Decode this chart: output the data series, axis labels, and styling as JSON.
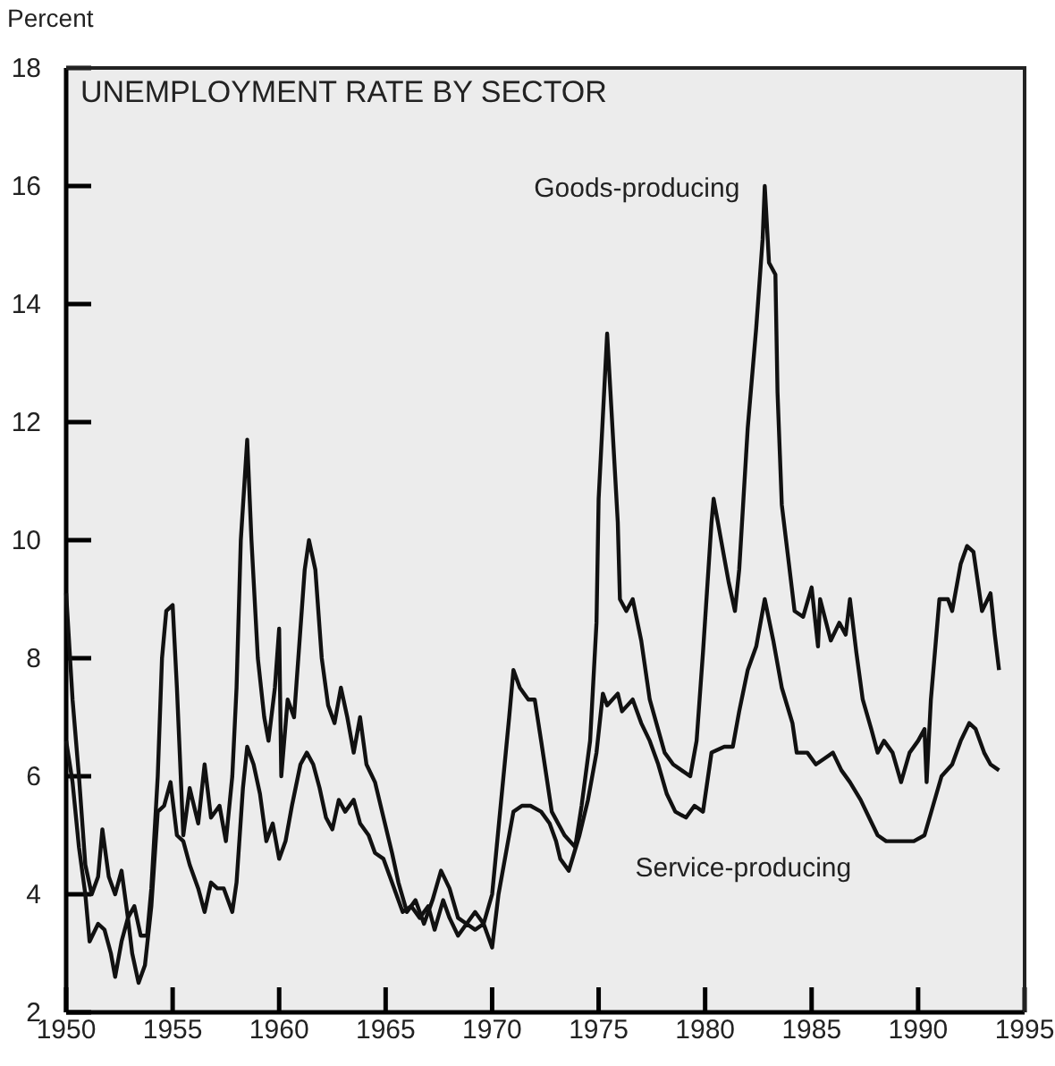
{
  "chart_data": {
    "type": "line",
    "title": "UNEMPLOYMENT RATE BY SECTOR",
    "ylabel": "Percent",
    "xlim": [
      1950,
      1995
    ],
    "xticks": [
      1950,
      1955,
      1960,
      1965,
      1970,
      1975,
      1980,
      1985,
      1990,
      1995
    ],
    "ylim": [
      2,
      18
    ],
    "yticks": [
      2,
      4,
      6,
      8,
      10,
      12,
      14,
      16,
      18
    ],
    "grid": false,
    "series": [
      {
        "name": "Goods-producing",
        "color": "#111111",
        "x": [
          1950.0,
          1950.3,
          1950.6,
          1950.9,
          1951.2,
          1951.5,
          1951.7,
          1952.0,
          1952.3,
          1952.6,
          1952.9,
          1953.2,
          1953.5,
          1953.8,
          1954.0,
          1954.3,
          1954.5,
          1954.7,
          1955.0,
          1955.2,
          1955.5,
          1955.8,
          1956.2,
          1956.5,
          1956.8,
          1957.2,
          1957.5,
          1957.8,
          1958.0,
          1958.2,
          1958.5,
          1958.7,
          1959.0,
          1959.3,
          1959.5,
          1959.8,
          1960.0,
          1960.1,
          1960.4,
          1960.7,
          1961.0,
          1961.2,
          1961.4,
          1961.7,
          1962.0,
          1962.3,
          1962.6,
          1962.9,
          1963.2,
          1963.5,
          1963.8,
          1964.1,
          1964.5,
          1964.9,
          1965.3,
          1965.6,
          1966.0,
          1966.4,
          1966.8,
          1967.2,
          1967.6,
          1968.0,
          1968.4,
          1968.8,
          1969.2,
          1969.6,
          1970.0,
          1970.4,
          1970.8,
          1971.0,
          1971.3,
          1971.7,
          1972.0,
          1972.3,
          1972.8,
          1973.4,
          1973.9,
          1974.2,
          1974.6,
          1974.9,
          1975.0,
          1975.4,
          1975.9,
          1976.0,
          1976.3,
          1976.6,
          1977.0,
          1977.4,
          1978.1,
          1978.5,
          1978.9,
          1979.3,
          1979.6,
          1979.9,
          1980.3,
          1980.4,
          1980.6,
          1980.9,
          1981.1,
          1981.4,
          1981.6,
          1981.8,
          1982.0,
          1982.4,
          1982.7,
          1982.8,
          1983.0,
          1983.3,
          1983.4,
          1983.6,
          1983.9,
          1984.2,
          1984.6,
          1985.0,
          1985.3,
          1985.4,
          1985.9,
          1986.3,
          1986.6,
          1986.8,
          1987.1,
          1987.4,
          1987.8,
          1988.1,
          1988.4,
          1988.8,
          1989.2,
          1989.6,
          1990.0,
          1990.3,
          1990.4,
          1990.6,
          1991.0,
          1991.4,
          1991.6,
          1992.0,
          1992.3,
          1992.6,
          1993.0,
          1993.4,
          1993.6,
          1993.8
        ],
        "values": [
          9.1,
          7.3,
          6.0,
          4.5,
          4.0,
          4.3,
          5.1,
          4.3,
          4.0,
          4.4,
          3.6,
          3.8,
          3.3,
          3.3,
          4.1,
          6.0,
          8.0,
          8.8,
          8.9,
          7.5,
          5.0,
          5.8,
          5.2,
          6.2,
          5.3,
          5.5,
          4.9,
          6.0,
          7.5,
          10.0,
          11.7,
          10.0,
          8.0,
          7.0,
          6.6,
          7.5,
          8.5,
          6.0,
          7.3,
          7.0,
          8.5,
          9.5,
          10.0,
          9.5,
          8.0,
          7.2,
          6.9,
          7.5,
          7.0,
          6.4,
          7.0,
          6.2,
          5.9,
          5.3,
          4.7,
          4.2,
          3.7,
          3.9,
          3.5,
          3.9,
          4.4,
          4.1,
          3.6,
          3.5,
          3.7,
          3.5,
          4.0,
          5.5,
          7.0,
          7.8,
          7.5,
          7.3,
          7.3,
          6.6,
          5.4,
          5.0,
          4.8,
          5.5,
          6.6,
          8.6,
          10.7,
          13.5,
          10.3,
          9.0,
          8.8,
          9.0,
          8.3,
          7.3,
          6.4,
          6.2,
          6.1,
          6.0,
          6.6,
          8.1,
          10.3,
          10.7,
          10.3,
          9.7,
          9.3,
          8.8,
          9.5,
          10.7,
          11.9,
          13.6,
          15.1,
          16.0,
          14.7,
          14.5,
          12.5,
          10.6,
          9.7,
          8.8,
          8.7,
          9.2,
          8.2,
          9.0,
          8.3,
          8.6,
          8.4,
          9.0,
          8.1,
          7.3,
          6.8,
          6.4,
          6.6,
          6.4,
          5.9,
          6.4,
          6.6,
          6.8,
          5.9,
          7.3,
          9.0,
          9.0,
          8.8,
          9.6,
          9.9,
          9.8,
          8.8,
          9.1,
          8.4,
          7.8
        ]
      },
      {
        "name": "Service-producing",
        "color": "#111111",
        "x": [
          1950.0,
          1950.3,
          1950.6,
          1950.9,
          1951.1,
          1951.5,
          1951.8,
          1952.1,
          1952.3,
          1952.6,
          1952.9,
          1953.1,
          1953.4,
          1953.7,
          1954.0,
          1954.3,
          1954.6,
          1954.9,
          1955.2,
          1955.5,
          1955.8,
          1956.2,
          1956.5,
          1956.8,
          1957.1,
          1957.4,
          1957.8,
          1958.0,
          1958.3,
          1958.5,
          1958.8,
          1959.1,
          1959.4,
          1959.7,
          1960.0,
          1960.3,
          1960.6,
          1961.0,
          1961.3,
          1961.6,
          1961.9,
          1962.2,
          1962.5,
          1962.8,
          1963.1,
          1963.5,
          1963.8,
          1964.2,
          1964.5,
          1964.9,
          1965.2,
          1965.5,
          1965.8,
          1966.2,
          1966.6,
          1967.0,
          1967.3,
          1967.7,
          1968.0,
          1968.4,
          1968.8,
          1969.2,
          1969.6,
          1970.0,
          1970.3,
          1970.7,
          1971.0,
          1971.4,
          1971.8,
          1972.3,
          1972.7,
          1973.0,
          1973.2,
          1973.6,
          1974.1,
          1974.5,
          1974.9,
          1975.2,
          1975.4,
          1975.9,
          1976.1,
          1976.6,
          1977.0,
          1977.4,
          1977.8,
          1978.2,
          1978.6,
          1979.1,
          1979.5,
          1979.9,
          1980.3,
          1980.9,
          1981.3,
          1981.6,
          1982.0,
          1982.4,
          1982.8,
          1983.2,
          1983.6,
          1984.1,
          1984.3,
          1984.8,
          1985.2,
          1985.6,
          1986.0,
          1986.4,
          1986.8,
          1987.3,
          1987.7,
          1988.1,
          1988.5,
          1988.9,
          1989.3,
          1989.8,
          1990.3,
          1990.7,
          1991.1,
          1991.6,
          1992.0,
          1992.4,
          1992.7,
          1993.1,
          1993.4,
          1993.8
        ],
        "values": [
          6.6,
          5.9,
          4.8,
          4.0,
          3.2,
          3.5,
          3.4,
          3.0,
          2.6,
          3.2,
          3.6,
          3.0,
          2.5,
          2.8,
          3.8,
          5.4,
          5.5,
          5.9,
          5.0,
          4.9,
          4.5,
          4.1,
          3.7,
          4.2,
          4.1,
          4.1,
          3.7,
          4.2,
          5.8,
          6.5,
          6.2,
          5.7,
          4.9,
          5.2,
          4.6,
          4.9,
          5.5,
          6.2,
          6.4,
          6.2,
          5.8,
          5.3,
          5.1,
          5.6,
          5.4,
          5.6,
          5.2,
          5.0,
          4.7,
          4.6,
          4.3,
          4.0,
          3.7,
          3.8,
          3.6,
          3.8,
          3.4,
          3.9,
          3.6,
          3.3,
          3.5,
          3.4,
          3.5,
          3.1,
          4.0,
          4.8,
          5.4,
          5.5,
          5.5,
          5.4,
          5.2,
          4.9,
          4.6,
          4.4,
          5.0,
          5.6,
          6.4,
          7.4,
          7.2,
          7.4,
          7.1,
          7.3,
          6.9,
          6.6,
          6.2,
          5.7,
          5.4,
          5.3,
          5.5,
          5.4,
          6.4,
          6.5,
          6.5,
          7.1,
          7.8,
          8.2,
          9.0,
          8.3,
          7.5,
          6.9,
          6.4,
          6.4,
          6.2,
          6.3,
          6.4,
          6.1,
          5.9,
          5.6,
          5.3,
          5.0,
          4.9,
          4.9,
          4.9,
          4.9,
          5.0,
          5.5,
          6.0,
          6.2,
          6.6,
          6.9,
          6.8,
          6.4,
          6.2,
          6.1
        ]
      }
    ]
  }
}
